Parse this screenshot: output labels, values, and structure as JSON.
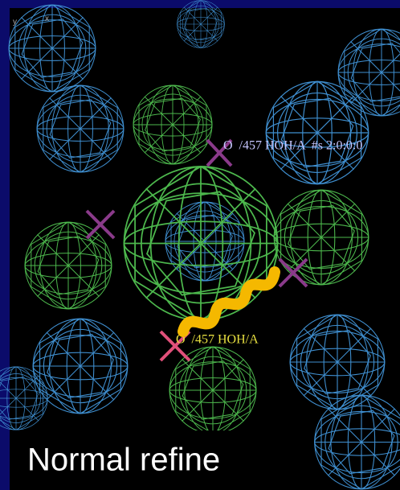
{
  "viewer": {
    "axis_y": "y",
    "axis_x": "x",
    "atom_label_top": "O  /457 HOH/A  #s 2:0:0:0",
    "atom_label_center": "O  /457 HOH/A"
  },
  "caption": "Normal refine"
}
